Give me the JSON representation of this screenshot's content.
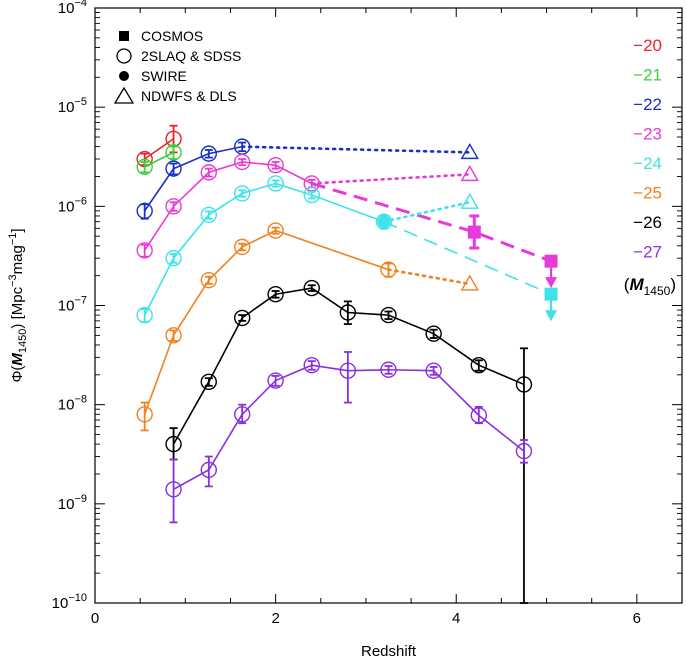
{
  "chart_data": {
    "type": "line",
    "xlabel": "Redshift",
    "ylabel": "Φ(M1450) [Mpc^-3 mag^-1]",
    "ylabel_parts": {
      "phi": "Φ(",
      "m": "M",
      "m_sub": "1450",
      "close": ")",
      "unit_a": "[Mpc",
      "unit_a_sup": "−3",
      "unit_b": "mag",
      "unit_b_sup": "−1",
      "unit_end": "]"
    },
    "xlim": [
      0,
      6.5
    ],
    "ylim": [
      1e-10,
      0.0001
    ],
    "y_scale": "log",
    "x_ticks": [
      {
        "value": 0,
        "label": "0"
      },
      {
        "value": 2,
        "label": "2"
      },
      {
        "value": 4,
        "label": "4"
      },
      {
        "value": 6,
        "label": "6"
      }
    ],
    "y_ticks": [
      {
        "exp": -10,
        "base": "10",
        "sup": "−10"
      },
      {
        "exp": -9,
        "base": "10",
        "sup": "−9"
      },
      {
        "exp": -8,
        "base": "10",
        "sup": "−8"
      },
      {
        "exp": -7,
        "base": "10",
        "sup": "−7"
      },
      {
        "exp": -6,
        "base": "10",
        "sup": "−6"
      },
      {
        "exp": -5,
        "base": "10",
        "sup": "−5"
      },
      {
        "exp": -4,
        "base": "10",
        "sup": "−4"
      }
    ],
    "legend": [
      {
        "label": "COSMOS",
        "marker": "filled-square"
      },
      {
        "label": "2SLAQ & SDSS",
        "marker": "open-circle"
      },
      {
        "label": "SWIRE",
        "marker": "filled-circle"
      },
      {
        "label": "NDWFS & DLS",
        "marker": "open-triangle"
      }
    ],
    "magnitude_legend": {
      "label": "M",
      "label_sub": "1450",
      "entries": [
        {
          "label": "−20",
          "color": "#e8222a"
        },
        {
          "label": "−21",
          "color": "#3ad13a"
        },
        {
          "label": "−22",
          "color": "#1a2fc4"
        },
        {
          "label": "−23",
          "color": "#e83ad8"
        },
        {
          "label": "−24",
          "color": "#3de3e8"
        },
        {
          "label": "−25",
          "color": "#f0821e"
        },
        {
          "label": "−26",
          "color": "#000000"
        },
        {
          "label": "−27",
          "color": "#8a2fe0"
        }
      ]
    },
    "series": [
      {
        "name": "−20",
        "color": "#e8222a",
        "points": [
          {
            "x": 0.55,
            "y": 3e-06,
            "lo": 2.6e-06,
            "hi": 3.4e-06
          },
          {
            "x": 0.87,
            "y": 4.8e-06,
            "lo": 3.5e-06,
            "hi": 6.5e-06
          }
        ]
      },
      {
        "name": "−21",
        "color": "#3ad13a",
        "points": [
          {
            "x": 0.55,
            "y": 2.5e-06,
            "lo": 2.2e-06,
            "hi": 2.8e-06
          },
          {
            "x": 0.87,
            "y": 3.5e-06,
            "lo": 3e-06,
            "hi": 4e-06
          }
        ]
      },
      {
        "name": "−22",
        "color": "#1a2fc4",
        "points": [
          {
            "x": 0.55,
            "y": 9e-07,
            "lo": 7.5e-07,
            "hi": 1.05e-06
          },
          {
            "x": 0.87,
            "y": 2.4e-06,
            "lo": 2.1e-06,
            "hi": 2.7e-06
          },
          {
            "x": 1.26,
            "y": 3.4e-06,
            "lo": 3.1e-06,
            "hi": 3.7e-06
          },
          {
            "x": 1.63,
            "y": 4e-06,
            "lo": 3.6e-06,
            "hi": 4.4e-06
          }
        ],
        "extension": {
          "from": {
            "x": 1.63,
            "y": 4e-06
          },
          "to": {
            "x": 4.15,
            "y": 3.5e-06
          },
          "style": "dotted",
          "marker": "open-triangle"
        }
      },
      {
        "name": "−23",
        "color": "#e83ad8",
        "points": [
          {
            "x": 0.55,
            "y": 3.6e-07,
            "lo": 3.1e-07,
            "hi": 4.1e-07
          },
          {
            "x": 0.87,
            "y": 1e-06,
            "lo": 9e-07,
            "hi": 1.1e-06
          },
          {
            "x": 1.26,
            "y": 2.2e-06,
            "lo": 2e-06,
            "hi": 2.4e-06
          },
          {
            "x": 1.63,
            "y": 2.8e-06,
            "lo": 2.6e-06,
            "hi": 3e-06
          },
          {
            "x": 2.0,
            "y": 2.6e-06,
            "lo": 2.4e-06,
            "hi": 2.8e-06
          },
          {
            "x": 2.4,
            "y": 1.7e-06,
            "lo": 1.55e-06,
            "hi": 1.85e-06
          }
        ],
        "extension": {
          "from": {
            "x": 2.4,
            "y": 1.7e-06
          },
          "to": {
            "x": 4.15,
            "y": 2.1e-06
          },
          "style": "dotted",
          "marker": "open-triangle"
        },
        "dashed": {
          "points": [
            {
              "x": 2.4,
              "y": 1.7e-06
            },
            {
              "x": 4.2,
              "y": 5.5e-07
            },
            {
              "x": 5.05,
              "y": 2.8e-07
            }
          ]
        },
        "cosmos": {
          "x": 4.2,
          "y": 5.5e-07,
          "lo": 3.8e-07,
          "hi": 8e-07
        },
        "upper_limit": {
          "x": 5.05,
          "y": 2.8e-07
        }
      },
      {
        "name": "−24",
        "color": "#3de3e8",
        "points": [
          {
            "x": 0.55,
            "y": 8e-08,
            "lo": 6.8e-08,
            "hi": 9.2e-08
          },
          {
            "x": 0.87,
            "y": 3e-07,
            "lo": 2.7e-07,
            "hi": 3.3e-07
          },
          {
            "x": 1.26,
            "y": 8.2e-07,
            "lo": 7.5e-07,
            "hi": 8.9e-07
          },
          {
            "x": 1.63,
            "y": 1.35e-06,
            "lo": 1.25e-06,
            "hi": 1.45e-06
          },
          {
            "x": 2.0,
            "y": 1.7e-06,
            "lo": 1.58e-06,
            "hi": 1.82e-06
          },
          {
            "x": 2.4,
            "y": 1.3e-06,
            "lo": 1.2e-06,
            "hi": 1.4e-06
          },
          {
            "x": 3.2,
            "y": 7e-07,
            "lo": 6e-07,
            "hi": 8e-07
          }
        ],
        "extension": {
          "from": {
            "x": 3.2,
            "y": 7e-07
          },
          "to": {
            "x": 4.15,
            "y": 1.1e-06
          },
          "style": "dotted",
          "marker": "open-triangle"
        },
        "dashed": {
          "points": [
            {
              "x": 3.2,
              "y": 7e-07
            },
            {
              "x": 5.05,
              "y": 1.3e-07
            }
          ]
        },
        "swire": {
          "x": 3.2,
          "y": 7e-07,
          "lo": 6e-07,
          "hi": 8e-07
        },
        "upper_limit": {
          "x": 5.05,
          "y": 1.3e-07
        }
      },
      {
        "name": "−25",
        "color": "#f0821e",
        "points": [
          {
            "x": 0.55,
            "y": 8e-09,
            "lo": 5.5e-09,
            "hi": 1.05e-08
          },
          {
            "x": 0.87,
            "y": 5e-08,
            "lo": 4.4e-08,
            "hi": 5.6e-08
          },
          {
            "x": 1.26,
            "y": 1.8e-07,
            "lo": 1.65e-07,
            "hi": 1.95e-07
          },
          {
            "x": 1.63,
            "y": 3.9e-07,
            "lo": 3.6e-07,
            "hi": 4.2e-07
          },
          {
            "x": 2.0,
            "y": 5.7e-07,
            "lo": 5.3e-07,
            "hi": 6.1e-07
          },
          {
            "x": 3.25,
            "y": 2.3e-07,
            "lo": 1.95e-07,
            "hi": 2.65e-07
          }
        ],
        "extension": {
          "from": {
            "x": 3.25,
            "y": 2.3e-07
          },
          "to": {
            "x": 4.15,
            "y": 1.65e-07
          },
          "style": "dotted",
          "marker": "open-triangle"
        }
      },
      {
        "name": "−26",
        "color": "#000000",
        "points": [
          {
            "x": 0.87,
            "y": 4e-09,
            "lo": 2.8e-09,
            "hi": 5.8e-09
          },
          {
            "x": 1.26,
            "y": 1.7e-08,
            "lo": 1.55e-08,
            "hi": 1.85e-08
          },
          {
            "x": 1.63,
            "y": 7.5e-08,
            "lo": 7e-08,
            "hi": 8e-08
          },
          {
            "x": 2.0,
            "y": 1.3e-07,
            "lo": 1.2e-07,
            "hi": 1.4e-07
          },
          {
            "x": 2.4,
            "y": 1.5e-07,
            "lo": 1.4e-07,
            "hi": 1.6e-07
          },
          {
            "x": 2.8,
            "y": 8.5e-08,
            "lo": 6.5e-08,
            "hi": 1.1e-07
          },
          {
            "x": 3.25,
            "y": 8e-08,
            "lo": 7.3e-08,
            "hi": 8.7e-08
          },
          {
            "x": 3.75,
            "y": 5.2e-08,
            "lo": 4.7e-08,
            "hi": 5.7e-08
          },
          {
            "x": 4.25,
            "y": 2.5e-08,
            "lo": 2.2e-08,
            "hi": 2.8e-08
          },
          {
            "x": 4.75,
            "y": 1.6e-08,
            "lo": 1e-10,
            "hi": 3.7e-08
          }
        ]
      },
      {
        "name": "−27",
        "color": "#8a2fe0",
        "points": [
          {
            "x": 0.87,
            "y": 1.4e-09,
            "lo": 6.5e-10,
            "hi": 2.8e-09
          },
          {
            "x": 1.26,
            "y": 2.2e-09,
            "lo": 1.5e-09,
            "hi": 3e-09
          },
          {
            "x": 1.63,
            "y": 8e-09,
            "lo": 6.5e-09,
            "hi": 1e-08
          },
          {
            "x": 2.0,
            "y": 1.75e-08,
            "lo": 1.55e-08,
            "hi": 1.95e-08
          },
          {
            "x": 2.4,
            "y": 2.5e-08,
            "lo": 2.25e-08,
            "hi": 2.75e-08
          },
          {
            "x": 2.8,
            "y": 2.2e-08,
            "lo": 1.05e-08,
            "hi": 3.4e-08
          },
          {
            "x": 3.25,
            "y": 2.25e-08,
            "lo": 2.05e-08,
            "hi": 2.45e-08
          },
          {
            "x": 3.75,
            "y": 2.2e-08,
            "lo": 2e-08,
            "hi": 2.4e-08
          },
          {
            "x": 4.25,
            "y": 7.8e-09,
            "lo": 6.5e-09,
            "hi": 9.5e-09
          },
          {
            "x": 4.75,
            "y": 3.4e-09,
            "lo": 2.6e-09,
            "hi": 4.4e-09
          }
        ]
      }
    ]
  }
}
